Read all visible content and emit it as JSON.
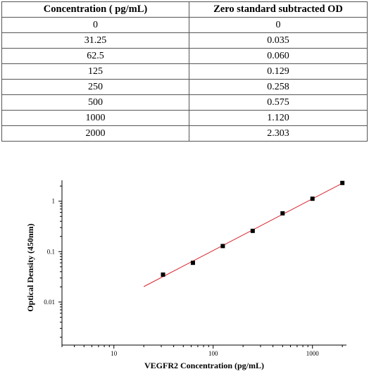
{
  "table": {
    "headers": [
      "Concentration ( pg/mL)",
      "Zero standard subtracted OD"
    ],
    "rows": [
      [
        "0",
        "0"
      ],
      [
        "31.25",
        "0.035"
      ],
      [
        "62.5",
        "0.060"
      ],
      [
        "125",
        "0.129"
      ],
      [
        "250",
        "0.258"
      ],
      [
        "500",
        "0.575"
      ],
      [
        "1000",
        "1.120"
      ],
      [
        "2000",
        "2.303"
      ]
    ]
  },
  "chart_data": {
    "type": "scatter",
    "x_scale": "log",
    "y_scale": "log",
    "xlim": [
      3,
      2200
    ],
    "ylim": [
      0.0014,
      2.6
    ],
    "xlabel": "VEGFR2 Concentration (pg/mL)",
    "ylabel": "Optical Density (450nm)",
    "x_ticks": [
      10,
      100,
      1000
    ],
    "x_tick_labels": [
      "10",
      "100",
      "1000"
    ],
    "y_ticks": [
      0.01,
      0.1,
      1
    ],
    "y_tick_labels": [
      "0.01",
      "0.1",
      "1"
    ],
    "grid": false,
    "series": [
      {
        "x": [
          31.25,
          62.5,
          125,
          250,
          500,
          1000,
          2000
        ],
        "y": [
          0.035,
          0.06,
          0.129,
          0.258,
          0.575,
          1.12,
          2.303
        ]
      }
    ],
    "fit_line": {
      "x_range": [
        20,
        2000
      ],
      "color": "#d9262e"
    },
    "marker_color": "#000000"
  }
}
